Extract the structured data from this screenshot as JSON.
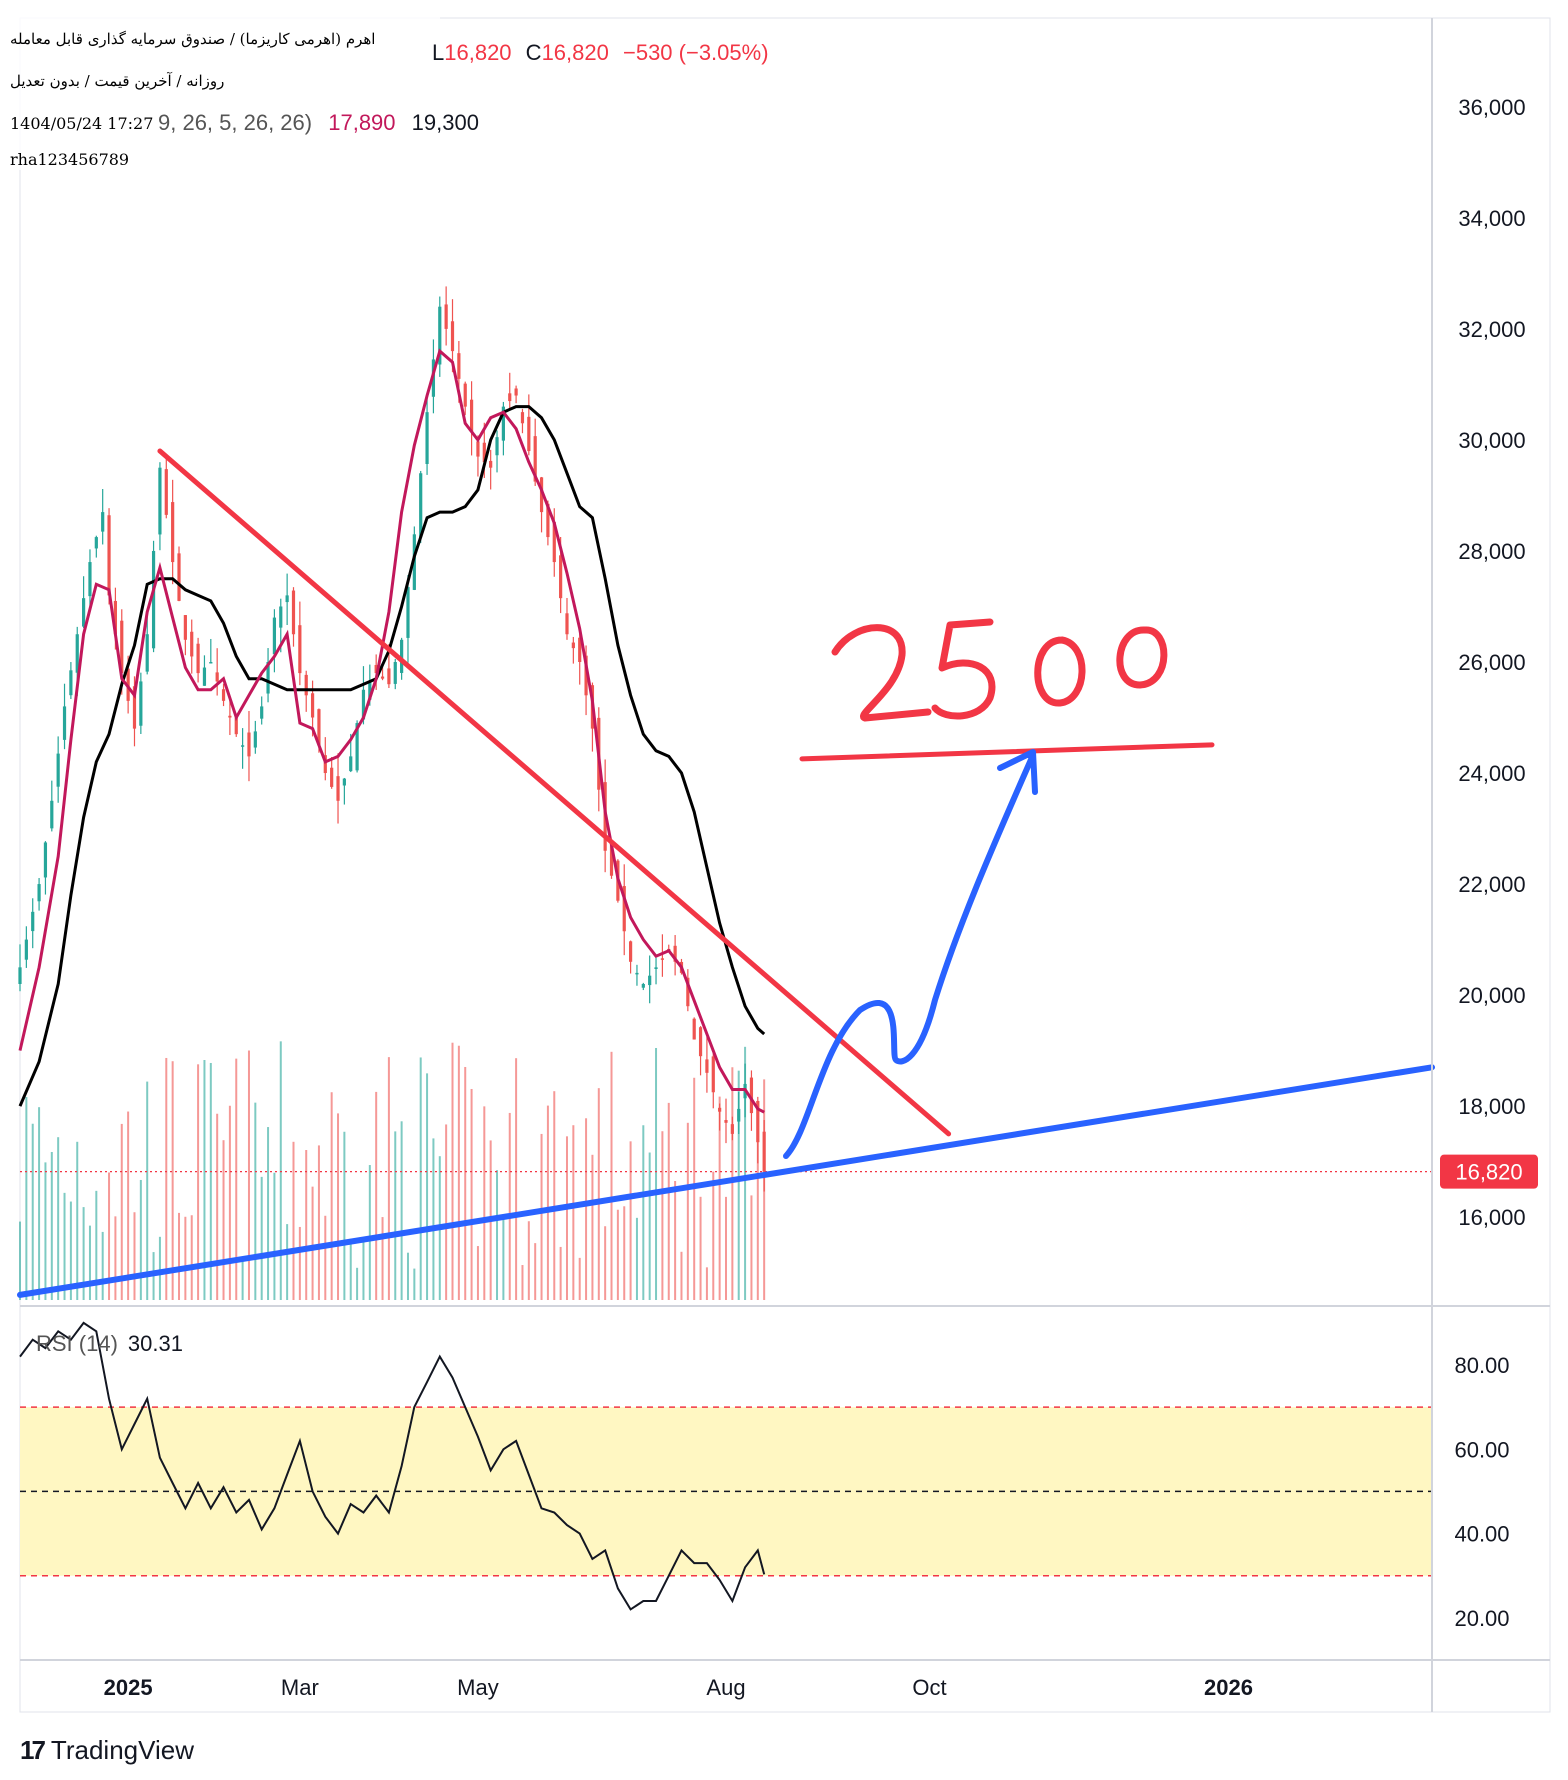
{
  "header": {
    "title": "اهرم (اهرمی کاریزما) / صندوق سرمایه گذاری قابل معامله",
    "subtitle": "روزانه / آخرین قیمت / بدون تعدیل",
    "timestamp": "1404/05/24 17:27",
    "author": "rha123456789"
  },
  "ohlc": {
    "low_label": "L",
    "low": "16,820",
    "close_label": "C",
    "close": "16,820",
    "change": "−530 (−3.05%)"
  },
  "indicator": {
    "params": "9, 26, 5, 26, 26)",
    "value1": "17,890",
    "value2": "19,300"
  },
  "rsi": {
    "label": "RSI (14)",
    "value": "30.31"
  },
  "price_axis": {
    "ticks": [
      "36,000",
      "34,000",
      "32,000",
      "30,000",
      "28,000",
      "26,000",
      "24,000",
      "22,000",
      "20,000",
      "18,000",
      "16,000"
    ],
    "current_price": "16,820"
  },
  "rsi_axis": {
    "ticks": [
      "80.00",
      "60.00",
      "40.00",
      "20.00"
    ]
  },
  "time_axis": {
    "ticks": [
      "2025",
      "Mar",
      "May",
      "Aug",
      "Oct",
      "2026"
    ]
  },
  "annotation": {
    "target_text": "2500"
  },
  "brand": {
    "name": "TradingView"
  },
  "colors": {
    "up": "#26a69a",
    "down": "#ef5350",
    "fast_line": "#c2185b",
    "slow_line": "#000000",
    "trend_red": "#f23645",
    "trend_blue": "#2962ff",
    "rsi_band": "#fff7c2"
  },
  "chart_data": {
    "type": "candlestick",
    "title": "اهرم (اهرمی کاریزما) / صندوق سرمایه گذاری قابل معامله",
    "ylim": [
      14400,
      37600
    ],
    "rsi_ylim": [
      10,
      94
    ],
    "rsi_levels": [
      70,
      50,
      30
    ],
    "price_path": [
      [
        0,
        20500
      ],
      [
        3,
        22000
      ],
      [
        5,
        23500
      ],
      [
        7,
        25200
      ],
      [
        9,
        26500
      ],
      [
        11,
        27800
      ],
      [
        13,
        28700
      ],
      [
        14,
        27200
      ],
      [
        16,
        25800
      ],
      [
        18,
        24800
      ],
      [
        20,
        26500
      ],
      [
        22,
        29500
      ],
      [
        24,
        27800
      ],
      [
        26,
        26400
      ],
      [
        28,
        25800
      ],
      [
        30,
        26000
      ],
      [
        32,
        25300
      ],
      [
        34,
        24700
      ],
      [
        36,
        24300
      ],
      [
        38,
        25200
      ],
      [
        40,
        26800
      ],
      [
        42,
        27200
      ],
      [
        44,
        25800
      ],
      [
        46,
        25000
      ],
      [
        48,
        24000
      ],
      [
        50,
        23500
      ],
      [
        52,
        24300
      ],
      [
        54,
        25500
      ],
      [
        56,
        25800
      ],
      [
        58,
        25600
      ],
      [
        60,
        26400
      ],
      [
        62,
        28300
      ],
      [
        64,
        30500
      ],
      [
        66,
        32400
      ],
      [
        68,
        31600
      ],
      [
        70,
        30600
      ],
      [
        72,
        29700
      ],
      [
        74,
        29500
      ],
      [
        76,
        30600
      ],
      [
        78,
        30800
      ],
      [
        80,
        29800
      ],
      [
        82,
        28700
      ],
      [
        84,
        27800
      ],
      [
        86,
        26500
      ],
      [
        88,
        26000
      ],
      [
        90,
        24800
      ],
      [
        92,
        22600
      ],
      [
        94,
        21700
      ],
      [
        96,
        20600
      ],
      [
        98,
        20200
      ],
      [
        100,
        20500
      ],
      [
        102,
        20800
      ],
      [
        104,
        20400
      ],
      [
        106,
        19200
      ],
      [
        108,
        18600
      ],
      [
        110,
        17900
      ],
      [
        112,
        17500
      ],
      [
        114,
        18400
      ],
      [
        116,
        17350
      ],
      [
        117,
        16820
      ]
    ],
    "fast_line": [
      [
        0,
        19000
      ],
      [
        3,
        20500
      ],
      [
        6,
        22500
      ],
      [
        8,
        24600
      ],
      [
        10,
        26500
      ],
      [
        12,
        27400
      ],
      [
        14,
        27300
      ],
      [
        16,
        25700
      ],
      [
        18,
        25400
      ],
      [
        20,
        26900
      ],
      [
        22,
        27700
      ],
      [
        24,
        26800
      ],
      [
        26,
        25900
      ],
      [
        28,
        25500
      ],
      [
        30,
        25500
      ],
      [
        32,
        25700
      ],
      [
        34,
        25000
      ],
      [
        36,
        25400
      ],
      [
        38,
        25800
      ],
      [
        40,
        26100
      ],
      [
        42,
        26500
      ],
      [
        44,
        24900
      ],
      [
        46,
        24800
      ],
      [
        48,
        24200
      ],
      [
        50,
        24300
      ],
      [
        52,
        24600
      ],
      [
        54,
        25000
      ],
      [
        56,
        25700
      ],
      [
        58,
        26900
      ],
      [
        60,
        28700
      ],
      [
        62,
        29900
      ],
      [
        64,
        30800
      ],
      [
        66,
        31600
      ],
      [
        68,
        31400
      ],
      [
        70,
        30300
      ],
      [
        72,
        30000
      ],
      [
        74,
        30400
      ],
      [
        76,
        30500
      ],
      [
        78,
        30200
      ],
      [
        80,
        29600
      ],
      [
        82,
        29100
      ],
      [
        84,
        28500
      ],
      [
        86,
        27600
      ],
      [
        88,
        26600
      ],
      [
        90,
        25300
      ],
      [
        92,
        23300
      ],
      [
        94,
        22100
      ],
      [
        96,
        21400
      ],
      [
        98,
        21000
      ],
      [
        100,
        20700
      ],
      [
        102,
        20800
      ],
      [
        104,
        20500
      ],
      [
        106,
        19900
      ],
      [
        108,
        19300
      ],
      [
        110,
        18700
      ],
      [
        112,
        18300
      ],
      [
        114,
        18300
      ],
      [
        116,
        17950
      ],
      [
        117,
        17890
      ]
    ],
    "slow_line": [
      [
        0,
        18000
      ],
      [
        3,
        18800
      ],
      [
        6,
        20200
      ],
      [
        8,
        21800
      ],
      [
        10,
        23200
      ],
      [
        12,
        24200
      ],
      [
        14,
        24700
      ],
      [
        16,
        25600
      ],
      [
        18,
        26300
      ],
      [
        20,
        27400
      ],
      [
        22,
        27500
      ],
      [
        24,
        27500
      ],
      [
        26,
        27300
      ],
      [
        28,
        27200
      ],
      [
        30,
        27100
      ],
      [
        32,
        26700
      ],
      [
        34,
        26100
      ],
      [
        36,
        25700
      ],
      [
        38,
        25700
      ],
      [
        40,
        25600
      ],
      [
        42,
        25500
      ],
      [
        44,
        25500
      ],
      [
        46,
        25500
      ],
      [
        48,
        25500
      ],
      [
        50,
        25500
      ],
      [
        52,
        25500
      ],
      [
        54,
        25600
      ],
      [
        56,
        25700
      ],
      [
        58,
        26200
      ],
      [
        60,
        27000
      ],
      [
        62,
        27900
      ],
      [
        64,
        28600
      ],
      [
        66,
        28700
      ],
      [
        68,
        28700
      ],
      [
        70,
        28800
      ],
      [
        72,
        29100
      ],
      [
        74,
        30000
      ],
      [
        76,
        30500
      ],
      [
        78,
        30600
      ],
      [
        80,
        30600
      ],
      [
        82,
        30400
      ],
      [
        84,
        30000
      ],
      [
        86,
        29400
      ],
      [
        88,
        28800
      ],
      [
        90,
        28600
      ],
      [
        92,
        27500
      ],
      [
        94,
        26300
      ],
      [
        96,
        25400
      ],
      [
        98,
        24700
      ],
      [
        100,
        24400
      ],
      [
        102,
        24300
      ],
      [
        104,
        24000
      ],
      [
        106,
        23300
      ],
      [
        108,
        22300
      ],
      [
        110,
        21300
      ],
      [
        112,
        20500
      ],
      [
        114,
        19800
      ],
      [
        116,
        19400
      ],
      [
        117,
        19300
      ]
    ],
    "rsi_path": [
      [
        0,
        82
      ],
      [
        2,
        86
      ],
      [
        4,
        84
      ],
      [
        6,
        88
      ],
      [
        8,
        86
      ],
      [
        10,
        90
      ],
      [
        12,
        88
      ],
      [
        14,
        72
      ],
      [
        16,
        60
      ],
      [
        18,
        66
      ],
      [
        20,
        72
      ],
      [
        22,
        58
      ],
      [
        24,
        52
      ],
      [
        26,
        46
      ],
      [
        28,
        52
      ],
      [
        30,
        46
      ],
      [
        32,
        51
      ],
      [
        34,
        45
      ],
      [
        36,
        48
      ],
      [
        38,
        41
      ],
      [
        40,
        46
      ],
      [
        42,
        54
      ],
      [
        44,
        62
      ],
      [
        46,
        50
      ],
      [
        48,
        44
      ],
      [
        50,
        40
      ],
      [
        52,
        47
      ],
      [
        54,
        45
      ],
      [
        56,
        49
      ],
      [
        58,
        45
      ],
      [
        60,
        56
      ],
      [
        62,
        70
      ],
      [
        64,
        76
      ],
      [
        66,
        82
      ],
      [
        68,
        77
      ],
      [
        70,
        70
      ],
      [
        72,
        63
      ],
      [
        74,
        55
      ],
      [
        76,
        60
      ],
      [
        78,
        62
      ],
      [
        80,
        54
      ],
      [
        82,
        46
      ],
      [
        84,
        45
      ],
      [
        86,
        42
      ],
      [
        88,
        40
      ],
      [
        90,
        34
      ],
      [
        92,
        36
      ],
      [
        94,
        27
      ],
      [
        96,
        22
      ],
      [
        98,
        24
      ],
      [
        100,
        24
      ],
      [
        102,
        30
      ],
      [
        104,
        36
      ],
      [
        106,
        33
      ],
      [
        108,
        33
      ],
      [
        110,
        29
      ],
      [
        112,
        24
      ],
      [
        114,
        32
      ],
      [
        116,
        36
      ],
      [
        117,
        30.31
      ]
    ],
    "x_ticks": [
      {
        "label": "2025",
        "index": 17
      },
      {
        "label": "Mar",
        "index": 44
      },
      {
        "label": "May",
        "index": 72
      },
      {
        "label": "Aug",
        "index": 111
      },
      {
        "label": "Oct",
        "index": 143
      },
      {
        "label": "2026",
        "index": 190
      }
    ],
    "trend_red": [
      [
        22,
        29800
      ],
      [
        146,
        17500
      ]
    ],
    "trend_blue": [
      [
        0,
        14600
      ],
      [
        222,
        18700
      ]
    ],
    "target_level": 24400
  }
}
